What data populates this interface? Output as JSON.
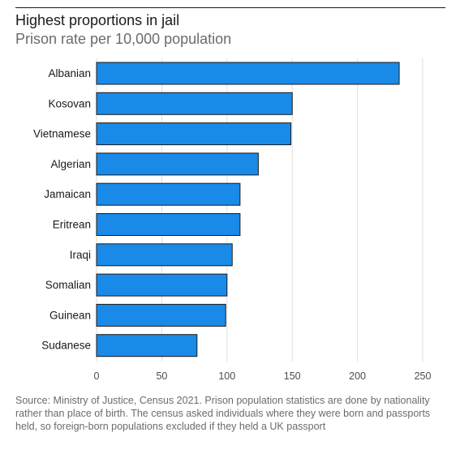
{
  "title": "Highest proportions in jail",
  "subtitle": "Prison rate per 10,000 population",
  "source": "Source: Ministry of Justice, Census 2021. Prison population statistics are done by nationality rather than place of birth. The census asked individuals where they were born and passports held, so foreign-born populations excluded if they held a UK passport",
  "colors": {
    "bar": "#1a8ae8",
    "bar_stroke": "#1a1a1a",
    "grid": "#dedede",
    "text": "#1a1a1a",
    "axis_text": "#4d4d4d"
  },
  "chart_data": {
    "type": "bar",
    "orientation": "horizontal",
    "categories": [
      "Albanian",
      "Kosovan",
      "Vietnamese",
      "Algerian",
      "Jamaican",
      "Eritrean",
      "Iraqi",
      "Somalian",
      "Guinean",
      "Sudanese"
    ],
    "values": [
      232,
      150,
      149,
      124,
      110,
      110,
      104,
      100,
      99,
      77
    ],
    "xlim": [
      0,
      250
    ],
    "xticks": [
      "0",
      "50",
      "100",
      "150",
      "200",
      "250"
    ],
    "grid": true
  }
}
